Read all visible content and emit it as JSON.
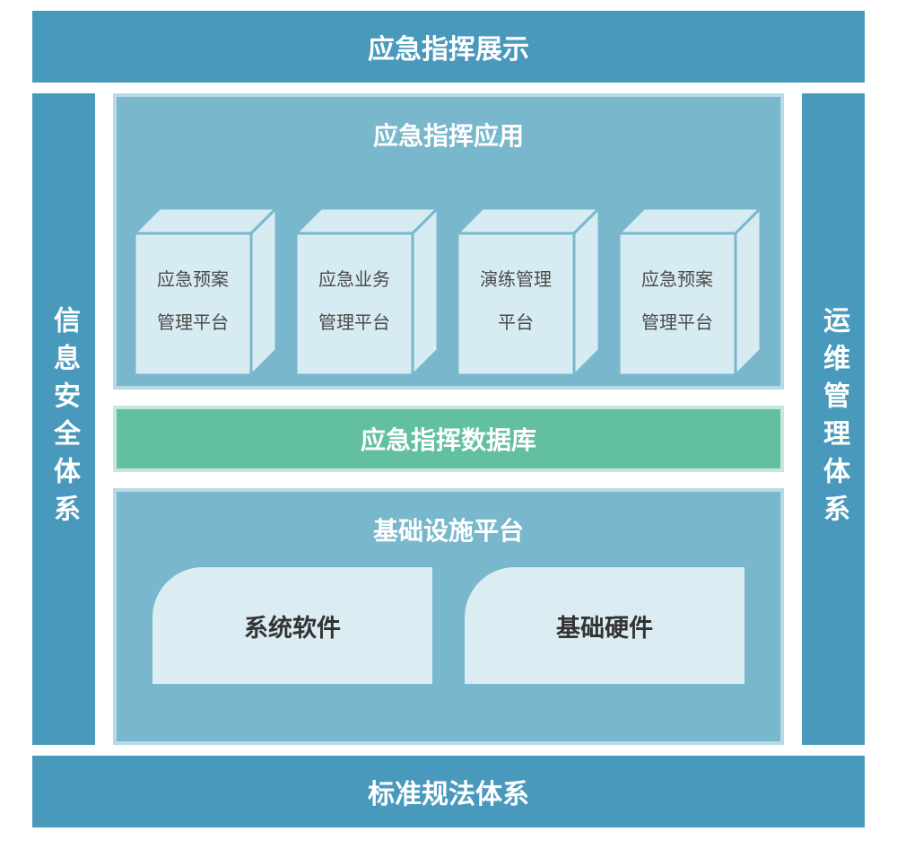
{
  "colors": {
    "frame": "#4999bc",
    "panel_border": "#b7dbe6",
    "app_bg": "#78b7cc",
    "cube_face": "#d7ecf2",
    "cube_side": "#d7ecf2",
    "cube_top": "#d7ecf2",
    "cube_stroke": "#78b7cc",
    "cube_text": "#4a4a4a",
    "db_bg": "#62bfa2",
    "db_border": "#c5e8db",
    "infra_box_bg": "#dbedf3",
    "infra_text": "#333333"
  },
  "top_bar": "应急指挥展示",
  "bottom_bar": "标准规法体系",
  "left_bar": "信息安全体系",
  "right_bar": "运维管理体系",
  "app_layer": {
    "title": "应急指挥应用",
    "cubes": [
      {
        "line1": "应急预案",
        "line2": "管理平台"
      },
      {
        "line1": "应急业务",
        "line2": "管理平台"
      },
      {
        "line1": "演练管理",
        "line2": "平台"
      },
      {
        "line1": "应急预案",
        "line2": "管理平台"
      }
    ]
  },
  "db_layer": {
    "title": "应急指挥数据库"
  },
  "infra_layer": {
    "title": "基础设施平台",
    "boxes": [
      "系统软件",
      "基础硬件"
    ]
  }
}
